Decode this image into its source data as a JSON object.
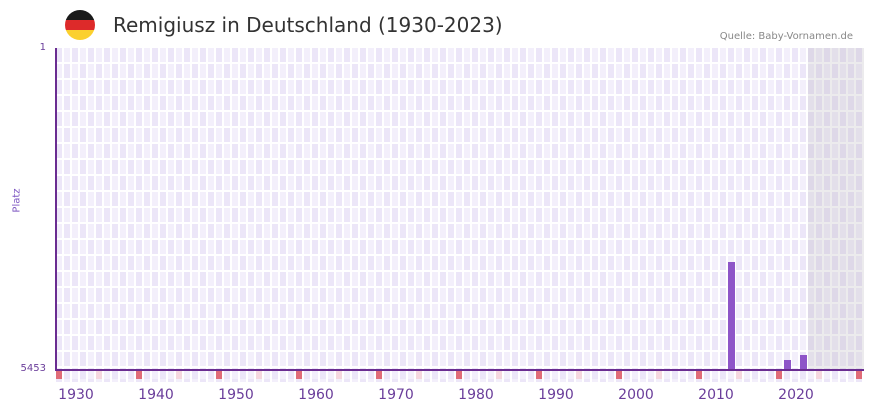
{
  "header": {
    "title": "Remigiusz in Deutschland (1930-2023)",
    "source": "Quelle: Baby-Vornamen.de",
    "flag_colors": [
      "#1a1a1a",
      "#dd2a2a",
      "#fbd02f"
    ]
  },
  "colors": {
    "bar": "#8e55c8",
    "axis": "#6a2c91",
    "marker_decade": "#e06c78",
    "marker_half": "#f5d7df",
    "cell_a": "#ece6f8",
    "cell_b": "#f3effb"
  },
  "chart_data": {
    "type": "bar",
    "title": "Remigiusz in Deutschland (1930-2023)",
    "xlabel": "",
    "ylabel": "Platz",
    "y_inverted": true,
    "ylim": [
      5453,
      1
    ],
    "y_ticks": [
      "1",
      "5453"
    ],
    "x_range": [
      1928,
      2028
    ],
    "x_ticks": [
      "1930",
      "1940",
      "1950",
      "1960",
      "1970",
      "1980",
      "1990",
      "2000",
      "2010",
      "2020"
    ],
    "future_shaded_from": 2022,
    "categories": [
      2012,
      2019,
      2021
    ],
    "values": [
      3630,
      5285,
      5200
    ],
    "series": [
      {
        "name": "Platz",
        "points": [
          {
            "x": 2012,
            "y": 3630
          },
          {
            "x": 2019,
            "y": 5285
          },
          {
            "x": 2021,
            "y": 5200
          }
        ]
      }
    ],
    "grid": true
  },
  "axes": {
    "y_top": "1",
    "y_bottom": "5453",
    "y_title": "Platz"
  }
}
